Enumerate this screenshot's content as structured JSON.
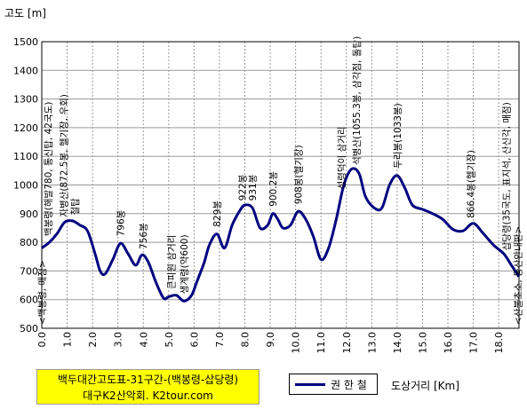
{
  "chart_data": {
    "type": "line",
    "ylabel": "고도 [m]",
    "xlabel": "도상거리 [Km]",
    "xlim": [
      0,
      18.8
    ],
    "ylim": [
      500,
      1500
    ],
    "yticks": [
      500,
      600,
      700,
      800,
      900,
      1000,
      1100,
      1200,
      1300,
      1400,
      1500
    ],
    "xticks": [
      "0.0",
      "1.0",
      "2.0",
      "3.0",
      "4.0",
      "5.0",
      "6.0",
      "7.0",
      "8.0",
      "9.0",
      "10.0",
      "11.0",
      "12.0",
      "13.0",
      "14.0",
      "15.0",
      "16.0",
      "17.0",
      "18.0"
    ],
    "grid": true,
    "line_color": "#00007f",
    "series": [
      {
        "name": "권 한 철",
        "x": [
          0.0,
          0.3,
          0.6,
          0.9,
          1.2,
          1.5,
          1.8,
          2.1,
          2.3,
          2.5,
          2.8,
          3.1,
          3.4,
          3.7,
          3.95,
          4.2,
          4.5,
          4.8,
          5.0,
          5.3,
          5.6,
          5.9,
          6.1,
          6.4,
          6.6,
          6.9,
          7.2,
          7.5,
          7.8,
          8.0,
          8.3,
          8.6,
          8.9,
          9.1,
          9.3,
          9.5,
          9.8,
          10.1,
          10.4,
          10.7,
          11.0,
          11.3,
          11.6,
          11.9,
          12.2,
          12.5,
          12.75,
          13.1,
          13.4,
          13.7,
          14.0,
          14.3,
          14.6,
          15.0,
          15.4,
          15.8,
          16.2,
          16.6,
          17.0,
          17.4,
          17.8,
          18.2,
          18.5,
          18.8
        ],
        "y": [
          780,
          800,
          830,
          870,
          875,
          860,
          840,
          760,
          700,
          690,
          740,
          796,
          760,
          720,
          756,
          730,
          660,
          605,
          610,
          615,
          595,
          615,
          660,
          730,
          790,
          829,
          780,
          860,
          910,
          930,
          920,
          850,
          860,
          900,
          880,
          850,
          860,
          908,
          880,
          820,
          740,
          780,
          880,
          1000,
          1055,
          1040,
          960,
          920,
          920,
          1000,
          1033,
          990,
          930,
          915,
          900,
          880,
          845,
          840,
          866,
          830,
          790,
          760,
          720,
          680
        ]
      }
    ],
    "annotations": [
      {
        "text": "<백봉령, 매점>",
        "x": 0.0
      },
      {
        "text": "백봉령(해발780, 통신탑, 42국도)",
        "x": 0.25
      },
      {
        "text": "자병산(872.5봉, 헬기장, 우회)",
        "x": 0.85
      },
      {
        "text": "철탑",
        "x": 1.3
      },
      {
        "text": "796봉",
        "x": 3.1
      },
      {
        "text": "756봉",
        "x": 4.0
      },
      {
        "text": "큰피원 삼거리",
        "x": 5.1
      },
      {
        "text": "생계령(약600)",
        "x": 5.6
      },
      {
        "text": "829봉",
        "x": 6.9
      },
      {
        "text": "922봉",
        "x": 7.9
      },
      {
        "text": "931봉",
        "x": 8.3
      },
      {
        "text": "900.2봉",
        "x": 9.1
      },
      {
        "text": "908봉(헬기장)",
        "x": 10.1
      },
      {
        "text": "석병산(1055.3봉, 삼각점, 돌탑)",
        "x": 12.4
      },
      {
        "text": "성령덕이 삼거리",
        "x": 11.8
      },
      {
        "text": "두리봉(1033봉)",
        "x": 14.0
      },
      {
        "text": "866.4봉(헬기장)",
        "x": 16.9
      },
      {
        "text": "삽당령(35국도, 표지석, 산신각, 매점)",
        "x": 18.3
      },
      {
        "text": "<산불초소, 등산안내판>",
        "x": 18.75
      }
    ]
  },
  "credit": {
    "title": "백두대간고도표-31구간-(백봉령-삽당령)",
    "org": "대구K2산악회. K2tour.com"
  },
  "legend": {
    "label": "권 한 철"
  }
}
